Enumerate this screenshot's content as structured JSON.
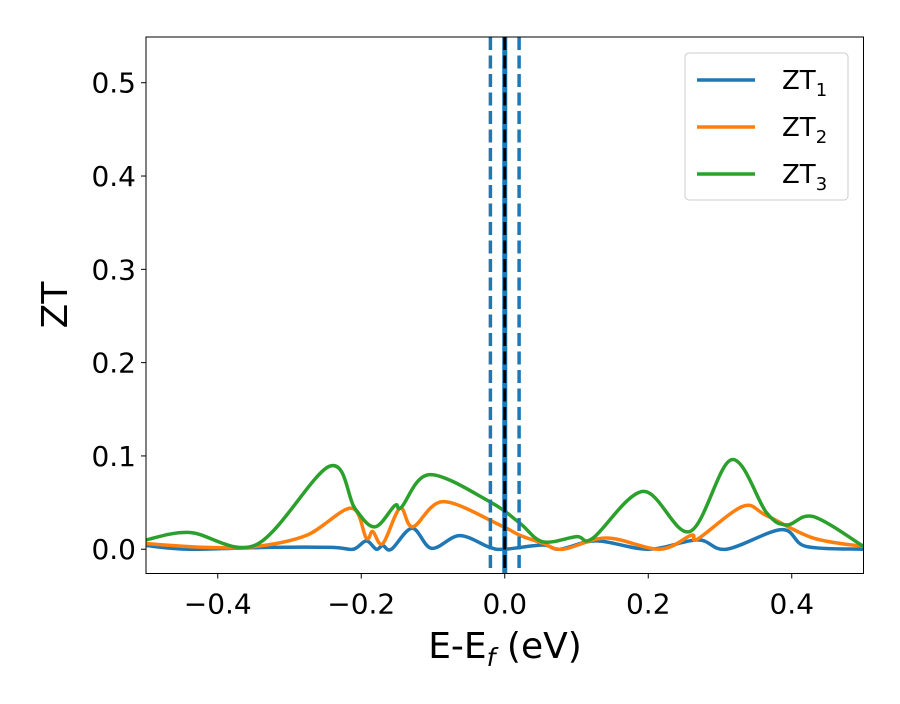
{
  "chart_data": {
    "type": "line",
    "title": "",
    "xlabel": "E-E",
    "xlabel_sub": "f",
    "xlabel_unit": " (eV)",
    "ylabel": "ZT",
    "xlim": [
      -0.5,
      0.5
    ],
    "ylim": [
      -0.026,
      0.549
    ],
    "xticks": [
      -0.4,
      -0.2,
      0.0,
      0.2,
      0.4
    ],
    "xtick_labels": [
      "−0.4",
      "−0.2",
      "0.0",
      "0.2",
      "0.4"
    ],
    "yticks": [
      0.0,
      0.1,
      0.2,
      0.3,
      0.4,
      0.5
    ],
    "ytick_labels": [
      "0.0",
      "0.1",
      "0.2",
      "0.3",
      "0.4",
      "0.5"
    ],
    "grid": false,
    "legend_position": "top-right",
    "series": [
      {
        "name": "ZT",
        "sub": "1",
        "color": "#1f77b4",
        "x": [
          -0.5,
          -0.44,
          -0.33,
          -0.24,
          -0.211,
          -0.193,
          -0.179,
          -0.17,
          -0.158,
          -0.129,
          -0.102,
          -0.063,
          -0.021,
          0.0,
          0.053,
          0.077,
          0.128,
          0.2,
          0.269,
          0.309,
          0.386,
          0.42,
          0.5
        ],
        "y": [
          0.004,
          0.0,
          0.002,
          0.002,
          0.0,
          0.009,
          0.0,
          0.004,
          0.0,
          0.0225,
          0.001,
          0.0146,
          0.002,
          0.0,
          0.0045,
          0.0,
          0.009,
          0.0,
          0.01,
          0.0,
          0.021,
          0.003,
          0.0
        ]
      },
      {
        "name": "ZT",
        "sub": "2",
        "color": "#ff7f0e",
        "x": [
          -0.5,
          -0.416,
          -0.346,
          -0.276,
          -0.214,
          -0.193,
          -0.184,
          -0.17,
          -0.146,
          -0.128,
          -0.086,
          -0.007,
          0.021,
          0.053,
          0.081,
          0.142,
          0.216,
          0.26,
          0.269,
          0.332,
          0.365,
          0.43,
          0.5
        ],
        "y": [
          0.006,
          0.002,
          0.003,
          0.015,
          0.044,
          0.012,
          0.019,
          0.006,
          0.044,
          0.024,
          0.051,
          0.026,
          0.015,
          0.0065,
          0.0,
          0.012,
          0.0,
          0.015,
          0.011,
          0.046,
          0.036,
          0.012,
          0.003
        ]
      },
      {
        "name": "ZT",
        "sub": "3",
        "color": "#2ca02c",
        "x": [
          -0.5,
          -0.439,
          -0.346,
          -0.244,
          -0.209,
          -0.181,
          -0.153,
          -0.144,
          -0.105,
          -0.021,
          0.021,
          0.053,
          0.1,
          0.123,
          0.193,
          0.258,
          0.316,
          0.365,
          0.393,
          0.43,
          0.5
        ],
        "y": [
          0.01,
          0.018,
          0.005,
          0.089,
          0.044,
          0.024,
          0.047,
          0.045,
          0.08,
          0.051,
          0.028,
          0.008,
          0.0135,
          0.012,
          0.062,
          0.019,
          0.096,
          0.039,
          0.026,
          0.035,
          0.003
        ]
      }
    ],
    "vlines": [
      {
        "x": 0.0,
        "color": "#1f77b4",
        "style": "solid"
      },
      {
        "x": 0.0,
        "color": "#000000",
        "style": "dashed"
      },
      {
        "x": -0.02,
        "color": "#1f77b4",
        "style": "dashed"
      },
      {
        "x": 0.02,
        "color": "#1f77b4",
        "style": "dashed"
      }
    ]
  }
}
